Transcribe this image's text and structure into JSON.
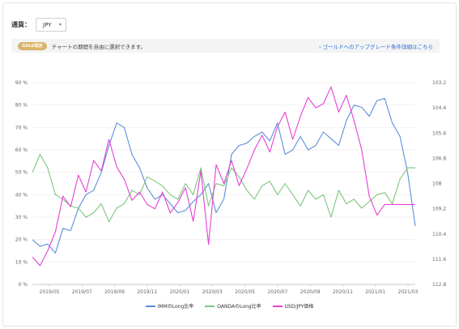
{
  "currency": {
    "label": "通貨：",
    "value": "JPY"
  },
  "notice": {
    "badge": "GOLD限定",
    "text": "チャートの期間を自由に選択できます。",
    "link": "› ゴールドへのアップグレード条件詳細はこちら"
  },
  "colors": {
    "imm": "#5b8fd9",
    "oanda": "#7cc77a",
    "usdjpy": "#e63fd6",
    "grid": "#ebebeb",
    "axis": "#888888"
  },
  "chart_data": {
    "type": "line",
    "x_ticks": [
      "2019/05",
      "2019/07",
      "2019/09",
      "2019/11",
      "2020/01",
      "2020/03",
      "2020/05",
      "2020/07",
      "2020/09",
      "2020/11",
      "2021/01",
      "2021/03"
    ],
    "left_ticks": [
      "90 %",
      "80 %",
      "70 %",
      "60 %",
      "50 %",
      "40 %",
      "30 %",
      "20 %",
      "10 %",
      "0 %"
    ],
    "right_ticks": [
      "103.2",
      "104.4",
      "105.6",
      "106.8",
      "108",
      "109.2",
      "110.4",
      "111.6",
      "112.8"
    ],
    "ylim_left": [
      0,
      90
    ],
    "ylim_right": [
      112.8,
      103.2
    ],
    "xlim": [
      0,
      100
    ],
    "legend": [
      "IMMのLong比率",
      "OANDAのLong比率",
      "USD/JPY価格"
    ],
    "series": [
      {
        "name": "IMMのLong比率",
        "axis": "left",
        "x": [
          0,
          2,
          4,
          6,
          8,
          10,
          12,
          14,
          16,
          18,
          20,
          22,
          24,
          26,
          28,
          30,
          32,
          34,
          36,
          38,
          40,
          42,
          44,
          46,
          48,
          50,
          52,
          54,
          56,
          58,
          60,
          62,
          64,
          66,
          68,
          70,
          72,
          74,
          76,
          78,
          80,
          82,
          84,
          86,
          88,
          90,
          92,
          94,
          96,
          98,
          100
        ],
        "values": [
          20,
          17,
          18,
          14,
          25,
          24,
          34,
          40,
          42,
          50,
          62,
          72,
          70,
          58,
          52,
          43,
          38,
          40,
          36,
          32,
          33,
          37,
          40,
          45,
          32,
          38,
          58,
          62,
          63,
          66,
          68,
          64,
          72,
          58,
          60,
          66,
          60,
          62,
          68,
          65,
          62,
          73,
          80,
          79,
          75,
          82,
          83,
          72,
          66,
          50,
          26
        ]
      },
      {
        "name": "OANDAのLong比率",
        "axis": "left",
        "x": [
          0,
          2,
          4,
          6,
          8,
          10,
          12,
          14,
          16,
          18,
          20,
          22,
          24,
          26,
          28,
          30,
          32,
          34,
          36,
          38,
          40,
          42,
          44,
          46,
          48,
          50,
          52,
          54,
          56,
          58,
          60,
          62,
          64,
          66,
          68,
          70,
          72,
          74,
          76,
          78,
          80,
          82,
          84,
          86,
          88,
          90,
          92,
          94,
          96,
          98,
          100
        ],
        "values": [
          50,
          58,
          52,
          40,
          38,
          35,
          34,
          30,
          32,
          36,
          28,
          34,
          36,
          42,
          40,
          48,
          46,
          44,
          40,
          38,
          45,
          40,
          52,
          35,
          45,
          44,
          52,
          48,
          42,
          38,
          44,
          46,
          40,
          45,
          40,
          35,
          42,
          38,
          40,
          30,
          42,
          36,
          38,
          34,
          37,
          40,
          41,
          36,
          47,
          52,
          52
        ]
      },
      {
        "name": "USD/JPY価格",
        "axis": "right",
        "x": [
          0,
          2,
          4,
          6,
          8,
          10,
          12,
          14,
          16,
          18,
          20,
          22,
          24,
          26,
          28,
          30,
          32,
          34,
          36,
          38,
          40,
          42,
          44,
          46,
          48,
          50,
          52,
          54,
          56,
          58,
          60,
          62,
          64,
          66,
          68,
          70,
          72,
          74,
          76,
          78,
          80,
          82,
          84,
          86,
          88,
          90,
          92,
          94,
          96,
          98,
          100
        ],
        "values": [
          111.5,
          111.9,
          111.2,
          110.3,
          108.6,
          109.1,
          107.6,
          108.4,
          106.9,
          107.4,
          105.9,
          107.2,
          107.8,
          108.8,
          108.4,
          109.0,
          109.2,
          108.4,
          109.4,
          108.9,
          108.2,
          109.8,
          107.4,
          110.9,
          107.1,
          108.0,
          106.9,
          108.1,
          107.3,
          106.4,
          105.7,
          106.5,
          105.3,
          104.6,
          105.9,
          104.8,
          103.9,
          104.4,
          104.2,
          103.4,
          104.6,
          103.8,
          105.0,
          106.4,
          108.6,
          109.5,
          109.0,
          109.0,
          109.0,
          109.0,
          109.0
        ]
      }
    ]
  }
}
